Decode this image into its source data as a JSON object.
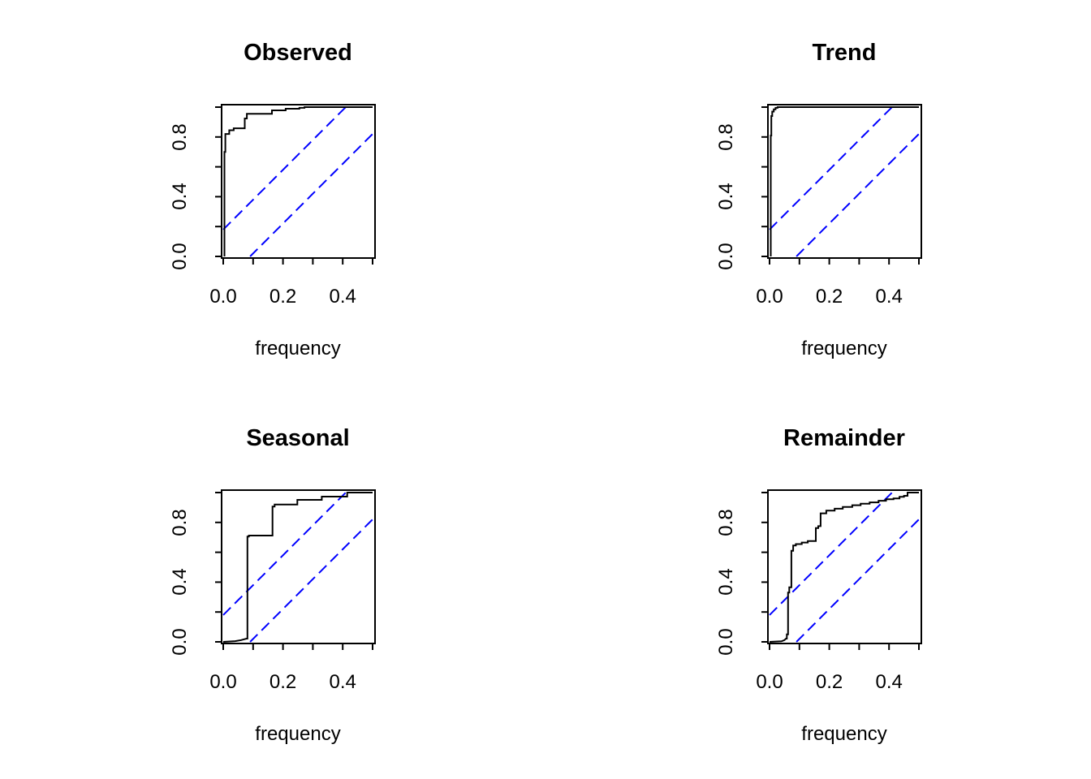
{
  "figure": {
    "background": "#ffffff",
    "curve_color": "#000000",
    "band_color": "#0000ff"
  },
  "chart_data": [
    {
      "type": "line",
      "subtype": "cumulative-periodogram-step",
      "title": "Observed",
      "xlabel": "frequency",
      "ylabel": "",
      "xlim": [
        0,
        0.5
      ],
      "ylim": [
        0,
        1
      ],
      "grid": false,
      "x_ticks": [
        0,
        0.1,
        0.2,
        0.3,
        0.4,
        0.5
      ],
      "x_tick_labels": [
        "0.0",
        "",
        "0.2",
        "",
        "0.4",
        ""
      ],
      "y_ticks": [
        0,
        0.2,
        0.4,
        0.6,
        0.8,
        1
      ],
      "y_tick_labels": [
        "0.0",
        "",
        "0.4",
        "",
        "0.8",
        ""
      ],
      "series": [
        {
          "name": "cumulative-periodogram-curve",
          "color": "#000000",
          "line_style": "solid",
          "points": [
            [
              0.004,
              0
            ],
            [
              0.004,
              0.7
            ],
            [
              0.007,
              0.7
            ],
            [
              0.007,
              0.82
            ],
            [
              0.02,
              0.82
            ],
            [
              0.02,
              0.845
            ],
            [
              0.035,
              0.845
            ],
            [
              0.035,
              0.858
            ],
            [
              0.072,
              0.858
            ],
            [
              0.072,
              0.924
            ],
            [
              0.079,
              0.924
            ],
            [
              0.079,
              0.955
            ],
            [
              0.163,
              0.955
            ],
            [
              0.163,
              0.978
            ],
            [
              0.209,
              0.978
            ],
            [
              0.209,
              0.989
            ],
            [
              0.255,
              0.989
            ],
            [
              0.255,
              0.995
            ],
            [
              0.272,
              0.995
            ],
            [
              0.272,
              1.0
            ],
            [
              0.5,
              1.0
            ]
          ]
        },
        {
          "name": "confidence-band-upper",
          "color": "#0000ff",
          "line_style": "dashed",
          "points": [
            [
              0,
              0.18
            ],
            [
              0.41,
              1.0
            ]
          ]
        },
        {
          "name": "confidence-band-lower",
          "color": "#0000ff",
          "line_style": "dashed",
          "points": [
            [
              0.09,
              0
            ],
            [
              0.5,
              0.82
            ]
          ]
        }
      ]
    },
    {
      "type": "line",
      "subtype": "cumulative-periodogram-step",
      "title": "Trend",
      "xlabel": "frequency",
      "ylabel": "",
      "xlim": [
        0,
        0.5
      ],
      "ylim": [
        0,
        1
      ],
      "grid": false,
      "x_ticks": [
        0,
        0.1,
        0.2,
        0.3,
        0.4,
        0.5
      ],
      "x_tick_labels": [
        "0.0",
        "",
        "0.2",
        "",
        "0.4",
        ""
      ],
      "y_ticks": [
        0,
        0.2,
        0.4,
        0.6,
        0.8,
        1
      ],
      "y_tick_labels": [
        "0.0",
        "",
        "0.4",
        "",
        "0.8",
        ""
      ],
      "series": [
        {
          "name": "cumulative-periodogram-curve",
          "color": "#000000",
          "line_style": "solid",
          "points": [
            [
              0.004,
              0
            ],
            [
              0.004,
              0.81
            ],
            [
              0.006,
              0.81
            ],
            [
              0.006,
              0.94
            ],
            [
              0.009,
              0.94
            ],
            [
              0.009,
              0.97
            ],
            [
              0.014,
              0.97
            ],
            [
              0.014,
              0.985
            ],
            [
              0.02,
              0.985
            ],
            [
              0.02,
              0.995
            ],
            [
              0.027,
              0.995
            ],
            [
              0.027,
              1.0
            ],
            [
              0.5,
              1.0
            ]
          ]
        },
        {
          "name": "confidence-band-upper",
          "color": "#0000ff",
          "line_style": "dashed",
          "points": [
            [
              0,
              0.18
            ],
            [
              0.41,
              1.0
            ]
          ]
        },
        {
          "name": "confidence-band-lower",
          "color": "#0000ff",
          "line_style": "dashed",
          "points": [
            [
              0.09,
              0
            ],
            [
              0.5,
              0.82
            ]
          ]
        }
      ]
    },
    {
      "type": "line",
      "subtype": "cumulative-periodogram-step",
      "title": "Seasonal",
      "xlabel": "frequency",
      "ylabel": "",
      "xlim": [
        0,
        0.5
      ],
      "ylim": [
        0,
        1
      ],
      "grid": false,
      "x_ticks": [
        0,
        0.1,
        0.2,
        0.3,
        0.4,
        0.5
      ],
      "x_tick_labels": [
        "0.0",
        "",
        "0.2",
        "",
        "0.4",
        ""
      ],
      "y_ticks": [
        0,
        0.2,
        0.4,
        0.6,
        0.8,
        1
      ],
      "y_tick_labels": [
        "0.0",
        "",
        "0.4",
        "",
        "0.8",
        ""
      ],
      "series": [
        {
          "name": "cumulative-periodogram-curve",
          "color": "#000000",
          "line_style": "solid",
          "points": [
            [
              0.0,
              0.0
            ],
            [
              0.04,
              0.005
            ],
            [
              0.06,
              0.012
            ],
            [
              0.078,
              0.022
            ],
            [
              0.081,
              0.022
            ],
            [
              0.081,
              0.705
            ],
            [
              0.086,
              0.705
            ],
            [
              0.086,
              0.712
            ],
            [
              0.165,
              0.712
            ],
            [
              0.165,
              0.906
            ],
            [
              0.172,
              0.906
            ],
            [
              0.172,
              0.92
            ],
            [
              0.248,
              0.92
            ],
            [
              0.248,
              0.951
            ],
            [
              0.33,
              0.951
            ],
            [
              0.33,
              0.973
            ],
            [
              0.415,
              0.973
            ],
            [
              0.415,
              1.0
            ],
            [
              0.5,
              1.0
            ]
          ]
        },
        {
          "name": "confidence-band-upper",
          "color": "#0000ff",
          "line_style": "dashed",
          "points": [
            [
              0,
              0.18
            ],
            [
              0.41,
              1.0
            ]
          ]
        },
        {
          "name": "confidence-band-lower",
          "color": "#0000ff",
          "line_style": "dashed",
          "points": [
            [
              0.09,
              0
            ],
            [
              0.5,
              0.82
            ]
          ]
        }
      ]
    },
    {
      "type": "line",
      "subtype": "cumulative-periodogram-step",
      "title": "Remainder",
      "xlabel": "frequency",
      "ylabel": "",
      "xlim": [
        0,
        0.5
      ],
      "ylim": [
        0,
        1
      ],
      "grid": false,
      "x_ticks": [
        0,
        0.1,
        0.2,
        0.3,
        0.4,
        0.5
      ],
      "x_tick_labels": [
        "0.0",
        "",
        "0.2",
        "",
        "0.4",
        ""
      ],
      "y_ticks": [
        0,
        0.2,
        0.4,
        0.6,
        0.8,
        1
      ],
      "y_tick_labels": [
        "0.0",
        "",
        "0.4",
        "",
        "0.8",
        ""
      ],
      "series": [
        {
          "name": "cumulative-periodogram-curve",
          "color": "#000000",
          "line_style": "solid",
          "points": [
            [
              0.0,
              0.0
            ],
            [
              0.04,
              0.004
            ],
            [
              0.05,
              0.012
            ],
            [
              0.055,
              0.022
            ],
            [
              0.058,
              0.022
            ],
            [
              0.058,
              0.05
            ],
            [
              0.062,
              0.05
            ],
            [
              0.062,
              0.33
            ],
            [
              0.066,
              0.33
            ],
            [
              0.066,
              0.366
            ],
            [
              0.073,
              0.366
            ],
            [
              0.073,
              0.61
            ],
            [
              0.079,
              0.61
            ],
            [
              0.079,
              0.645
            ],
            [
              0.088,
              0.645
            ],
            [
              0.088,
              0.655
            ],
            [
              0.108,
              0.655
            ],
            [
              0.108,
              0.665
            ],
            [
              0.128,
              0.665
            ],
            [
              0.128,
              0.675
            ],
            [
              0.155,
              0.675
            ],
            [
              0.155,
              0.762
            ],
            [
              0.163,
              0.762
            ],
            [
              0.163,
              0.775
            ],
            [
              0.171,
              0.775
            ],
            [
              0.171,
              0.861
            ],
            [
              0.19,
              0.861
            ],
            [
              0.19,
              0.879
            ],
            [
              0.218,
              0.879
            ],
            [
              0.218,
              0.892
            ],
            [
              0.245,
              0.892
            ],
            [
              0.245,
              0.903
            ],
            [
              0.277,
              0.903
            ],
            [
              0.277,
              0.915
            ],
            [
              0.305,
              0.915
            ],
            [
              0.305,
              0.925
            ],
            [
              0.335,
              0.925
            ],
            [
              0.335,
              0.934
            ],
            [
              0.365,
              0.934
            ],
            [
              0.365,
              0.945
            ],
            [
              0.39,
              0.945
            ],
            [
              0.39,
              0.955
            ],
            [
              0.415,
              0.955
            ],
            [
              0.415,
              0.961
            ],
            [
              0.435,
              0.961
            ],
            [
              0.435,
              0.972
            ],
            [
              0.45,
              0.972
            ],
            [
              0.45,
              0.978
            ],
            [
              0.462,
              0.978
            ],
            [
              0.462,
              1.0
            ],
            [
              0.5,
              1.0
            ]
          ]
        },
        {
          "name": "confidence-band-upper",
          "color": "#0000ff",
          "line_style": "dashed",
          "points": [
            [
              0,
              0.18
            ],
            [
              0.41,
              1.0
            ]
          ]
        },
        {
          "name": "confidence-band-lower",
          "color": "#0000ff",
          "line_style": "dashed",
          "points": [
            [
              0.09,
              0
            ],
            [
              0.5,
              0.82
            ]
          ]
        }
      ]
    }
  ]
}
